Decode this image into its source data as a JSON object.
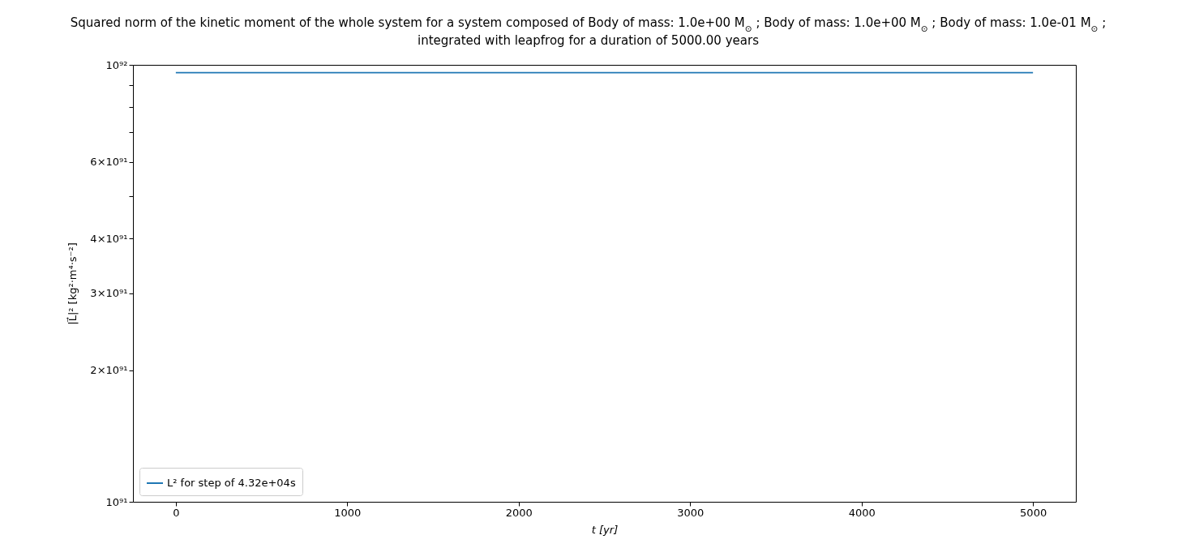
{
  "chart_data": {
    "type": "line",
    "title": [
      "Squared norm of the kinetic moment of the whole system for a system composed of Body of mass: 1.0e+00 M$_{⊙}$ ; Body of mass: 1.0e+00 M$_{⊙}$ ; Body of mass: 1.0e-01 M$_{⊙}$ ;",
      "integrated with leapfrog for a duration of 5000.00 years"
    ],
    "xlabel": "t [yr]",
    "ylabel": "|L⃗|² [kg²·m⁴·s⁻²]",
    "series": [
      {
        "name": "L² for step of 4.32e+04s",
        "color": "#1f77b4",
        "x": [
          0,
          5000
        ],
        "values": [
          9.6e+91,
          9.6e+91
        ]
      }
    ],
    "log": "y",
    "xlim": [
      -250,
      5250
    ],
    "xticks": [
      0,
      1000,
      2000,
      3000,
      4000,
      5000
    ],
    "ylim": [
      1e+91,
      1e+92
    ],
    "yticks": [
      {
        "value": 1e+91,
        "label": "10⁹¹"
      },
      {
        "value": 2e+91,
        "label": "2×10⁹¹"
      },
      {
        "value": 3e+91,
        "label": "3×10⁹¹"
      },
      {
        "value": 4e+91,
        "label": "4×10⁹¹"
      },
      {
        "value": 5e+91,
        "label": null
      },
      {
        "value": 6e+91,
        "label": "6×10⁹¹"
      },
      {
        "value": 7e+91,
        "label": null
      },
      {
        "value": 8e+91,
        "label": null
      },
      {
        "value": 9e+91,
        "label": null
      },
      {
        "value": 1e+92,
        "label": "10⁹²"
      }
    ],
    "grid": false,
    "legend": "bottom left",
    "marker": "none",
    "line_style": "solid"
  }
}
